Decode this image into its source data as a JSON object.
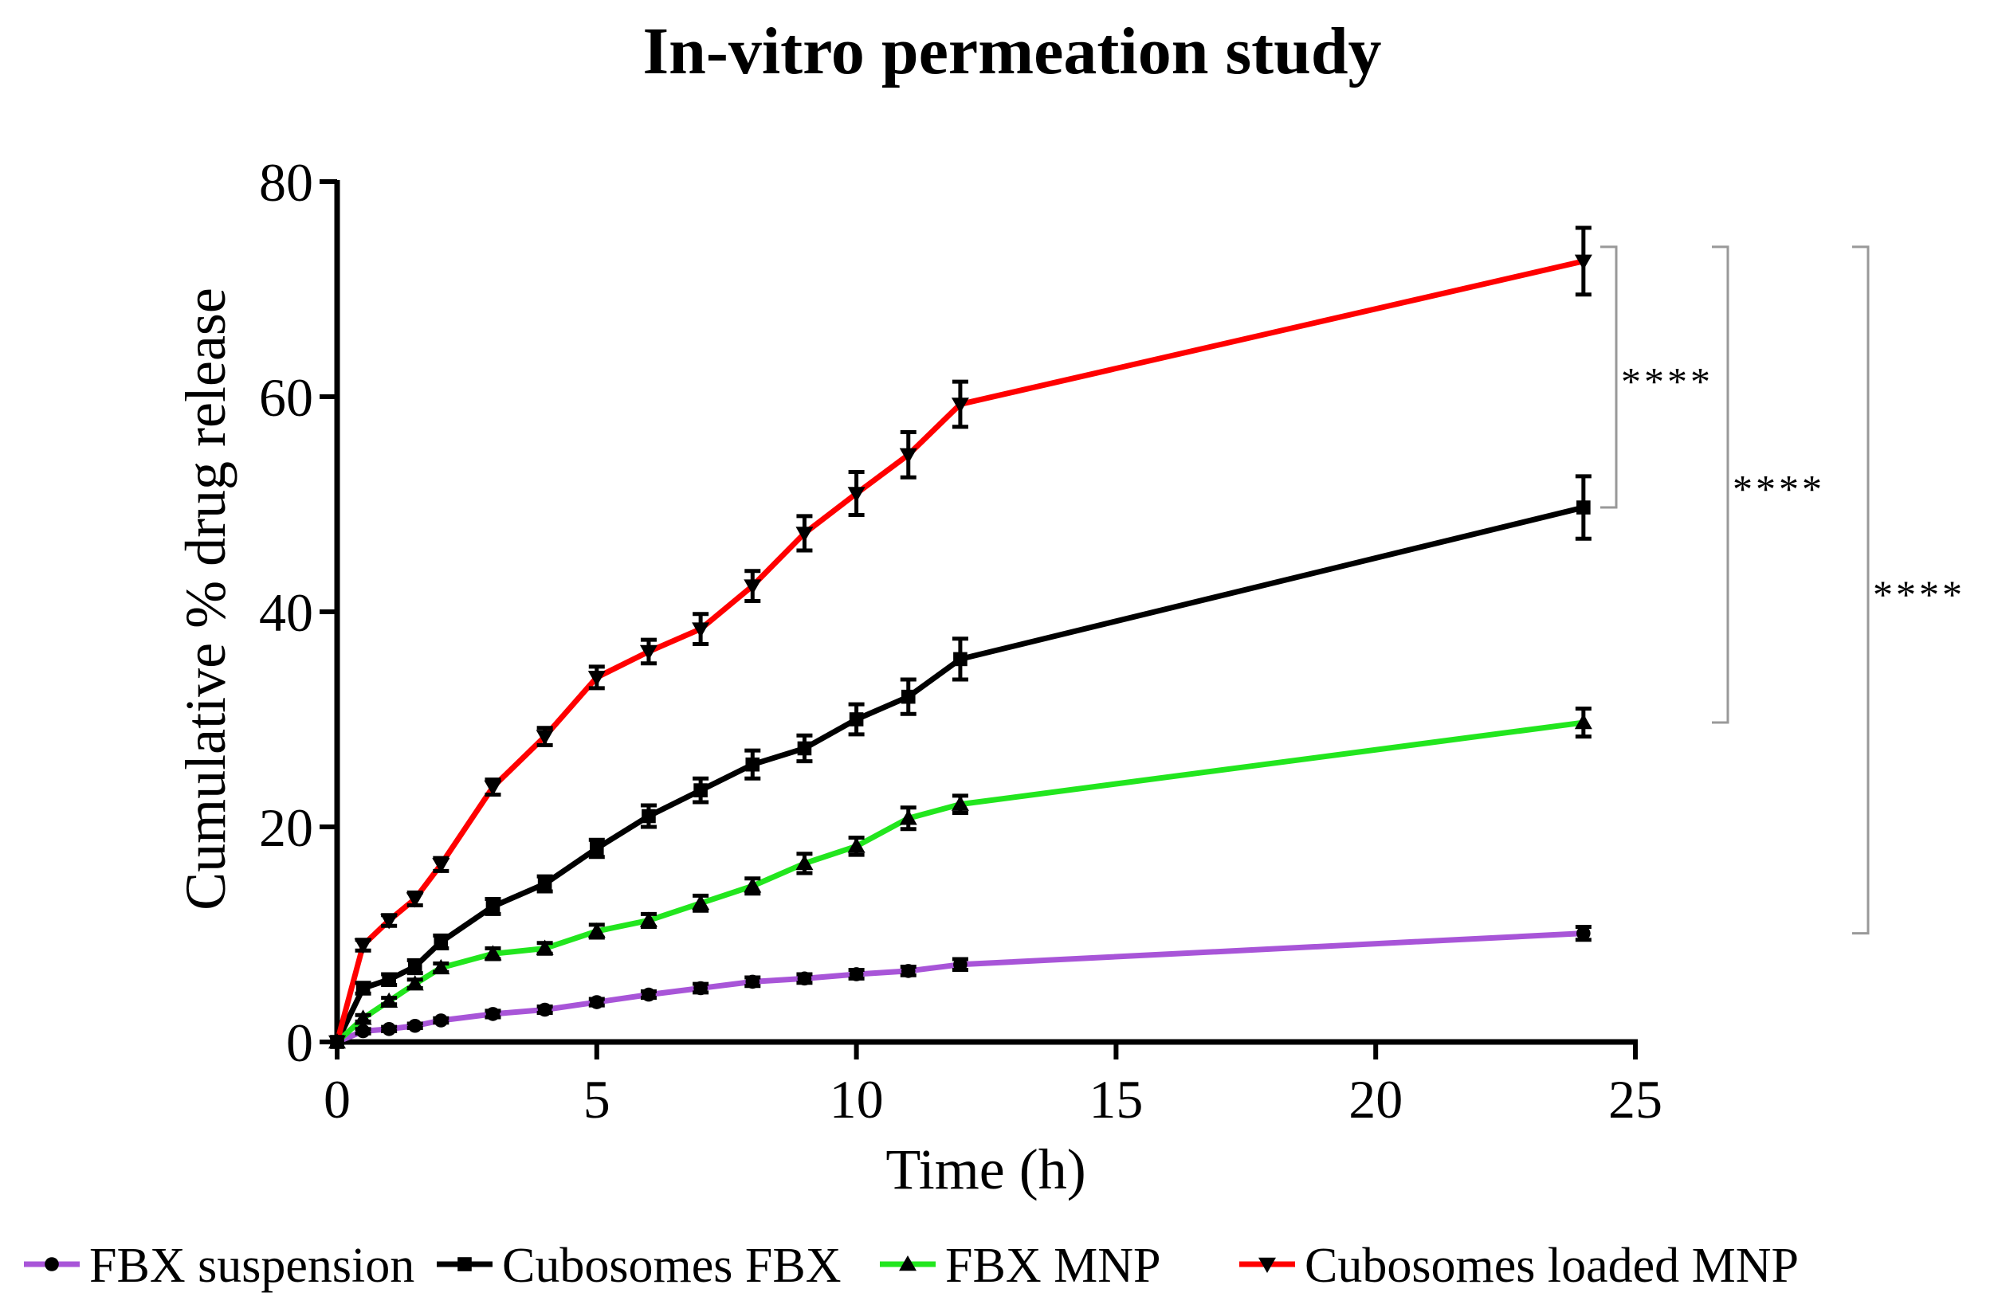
{
  "chart_data": {
    "type": "line",
    "title": "In-vitro permeation study",
    "xlabel": "Time (h)",
    "ylabel": "Cumulative % drug release",
    "xlim": [
      0,
      25
    ],
    "ylim": [
      0,
      80
    ],
    "xticks": [
      "0",
      "5",
      "10",
      "15",
      "20",
      "25"
    ],
    "yticks": [
      "0",
      "20",
      "40",
      "60",
      "80"
    ],
    "grid": false,
    "legend_position": "bottom",
    "x": [
      0,
      0.5,
      1,
      1.5,
      2,
      3,
      4,
      5,
      6,
      7,
      8,
      9,
      10,
      11,
      12,
      24
    ],
    "series": [
      {
        "name": "FBX suspension",
        "color": "#A855D8",
        "marker": "circle",
        "values": [
          0,
          1,
          1.2,
          1.5,
          2,
          2.6,
          3,
          3.7,
          4.4,
          5,
          5.6,
          5.9,
          6.3,
          6.6,
          7.2,
          10.1
        ],
        "errors": [
          0,
          0.2,
          0.2,
          0.2,
          0.2,
          0.3,
          0.3,
          0.3,
          0.3,
          0.4,
          0.4,
          0.4,
          0.4,
          0.4,
          0.5,
          0.6
        ]
      },
      {
        "name": "Cubosomes FBX",
        "color": "#000000",
        "marker": "square",
        "values": [
          0,
          5,
          5.8,
          7,
          9.3,
          12.6,
          14.7,
          18,
          21,
          23.4,
          25.8,
          27.3,
          30,
          32.1,
          35.6,
          49.7
        ],
        "errors": [
          0,
          0.5,
          0.5,
          0.6,
          0.6,
          0.7,
          0.7,
          0.8,
          1,
          1.1,
          1.3,
          1.2,
          1.4,
          1.6,
          1.9,
          2.9
        ]
      },
      {
        "name": "FBX MNP",
        "color": "#22E61E",
        "marker": "triangle-up",
        "values": [
          0,
          2.2,
          3.8,
          5.4,
          6.9,
          8.2,
          8.7,
          10.3,
          11.3,
          12.9,
          14.5,
          16.6,
          18.2,
          20.8,
          22.1,
          29.7
        ],
        "errors": [
          0,
          0.3,
          0.3,
          0.4,
          0.4,
          0.5,
          0.5,
          0.6,
          0.6,
          0.7,
          0.7,
          0.9,
          0.8,
          1,
          0.8,
          1.3
        ]
      },
      {
        "name": "Cubosomes loaded MNP",
        "color": "#FF0000",
        "marker": "triangle-down",
        "values": [
          0,
          9,
          11.3,
          13.3,
          16.5,
          23.7,
          28.4,
          33.9,
          36.3,
          38.4,
          42.4,
          47.3,
          51,
          54.6,
          59.3,
          72.6
        ],
        "errors": [
          0,
          0.5,
          0.5,
          0.6,
          0.6,
          0.7,
          0.8,
          1,
          1.1,
          1.4,
          1.4,
          1.6,
          2,
          2.1,
          2.1,
          3.1
        ]
      }
    ],
    "annotations": [
      {
        "text": "****",
        "between": [
          "Cubosomes loaded MNP",
          "Cubosomes FBX"
        ],
        "from_y": 72.6,
        "to_y": 49.7
      },
      {
        "text": "****",
        "between": [
          "Cubosomes loaded MNP",
          "FBX MNP"
        ],
        "from_y": 72.6,
        "to_y": 29.7
      },
      {
        "text": "****",
        "between": [
          "Cubosomes loaded MNP",
          "FBX suspension"
        ],
        "from_y": 72.6,
        "to_y": 10.1
      }
    ]
  }
}
